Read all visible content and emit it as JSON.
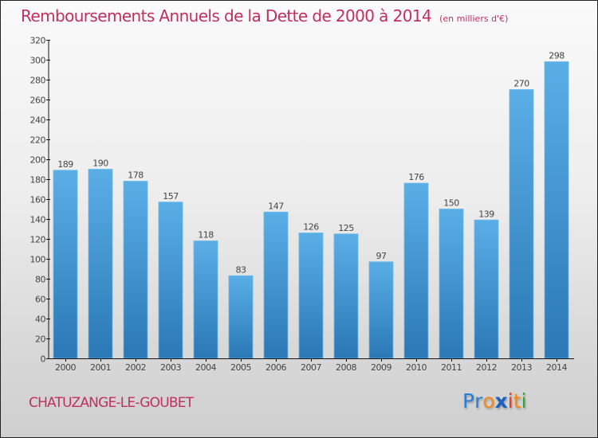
{
  "header": {
    "title": "Remboursements Annuels de la Dette de 2000 à 2014",
    "unit": "(en milliers d'€)"
  },
  "footer": {
    "commune": "CHATUZANGE-LE-GOUBET",
    "logo": {
      "letters": [
        {
          "char": "P",
          "color": "#2a7fd4"
        },
        {
          "char": "r",
          "color": "#2a7fd4"
        },
        {
          "char": "o",
          "color": "#f08a1c"
        },
        {
          "char": "x",
          "color": "#1d5fbf"
        },
        {
          "char": "i",
          "color": "#e23b2a"
        },
        {
          "char": "t",
          "color": "#f08a1c"
        },
        {
          "char": "i",
          "color": "#3aa23a"
        }
      ]
    }
  },
  "colors": {
    "title": "#c0305e",
    "bar_top": "#5aaee6",
    "bar_bottom": "#2a78b6"
  },
  "chart_data": {
    "type": "bar",
    "title": "Remboursements Annuels de la Dette de 2000 à 2014",
    "subtitle": "(en milliers d'€)",
    "xlabel": "",
    "ylabel": "",
    "categories": [
      "2000",
      "2001",
      "2002",
      "2003",
      "2004",
      "2005",
      "2006",
      "2007",
      "2008",
      "2009",
      "2010",
      "2011",
      "2012",
      "2013",
      "2014"
    ],
    "values": [
      189,
      190,
      178,
      157,
      118,
      83,
      147,
      126,
      125,
      97,
      176,
      150,
      139,
      270,
      298
    ],
    "ylim": [
      0,
      320
    ],
    "yticks": [
      0,
      20,
      40,
      60,
      80,
      100,
      120,
      140,
      160,
      180,
      200,
      220,
      240,
      260,
      280,
      300,
      320
    ],
    "grid": false,
    "legend": "none",
    "data_labels": true
  }
}
